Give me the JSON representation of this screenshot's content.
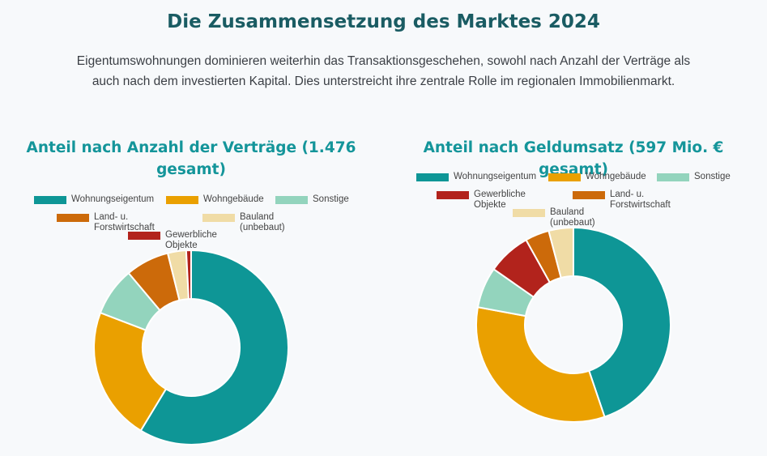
{
  "header": {
    "title": "Die Zusammensetzung des Marktes 2024",
    "intro": "Eigentumswohnungen dominieren weiterhin das Transaktionsgeschehen, sowohl nach Anzahl der Verträge als auch nach dem investierten Kapital. Dies unterstreicht ihre zentrale Rolle im regionalen Immobilienmarkt."
  },
  "colors": {
    "Wohnungseigentum": "#0e9696",
    "Wohngebäude": "#eaa000",
    "Sonstige": "#93d4bd",
    "Land- u. Forstwirtschaft": "#cc6a0a",
    "Bauland (unbebaut)": "#f0dca6",
    "Gewerbliche Objekte": "#b2231c"
  },
  "chart_data": [
    {
      "type": "pie",
      "variant": "doughnut",
      "title": "Anteil nach Anzahl der Verträge (1.476 gesamt)",
      "legend_position": "top",
      "legend": [
        {
          "label": "Wohnungseigentum",
          "color": "#0e9696"
        },
        {
          "label": "Wohngebäude",
          "color": "#eaa000"
        },
        {
          "label": "Sonstige",
          "color": "#93d4bd"
        },
        {
          "label": "Land- u. Forstwirtschaft",
          "color": "#cc6a0a"
        },
        {
          "label": "Bauland (unbebaut)",
          "color": "#f0dca6"
        },
        {
          "label": "Gewerbliche Objekte",
          "color": "#b2231c"
        }
      ],
      "slices": [
        {
          "label": "Wohnungseigentum",
          "value": 57.5,
          "color": "#0e9696"
        },
        {
          "label": "Wohngebäude",
          "value": 21.7,
          "color": "#eaa000"
        },
        {
          "label": "Sonstige",
          "value": 7.9,
          "color": "#93d4bd"
        },
        {
          "label": "Land- u. Forstwirtschaft",
          "value": 7.1,
          "color": "#cc6a0a"
        },
        {
          "label": "Bauland (unbebaut)",
          "value": 3.0,
          "color": "#f0dca6"
        },
        {
          "label": "Gewerbliche Objekte",
          "value": 0.8,
          "color": "#b2231c"
        }
      ]
    },
    {
      "type": "pie",
      "variant": "doughnut",
      "title": "Anteil nach Geldumsatz (597 Mio. € gesamt)",
      "legend_position": "top",
      "legend": [
        {
          "label": "Wohnungseigentum",
          "color": "#0e9696"
        },
        {
          "label": "Wohngebäude",
          "color": "#eaa000"
        },
        {
          "label": "Sonstige",
          "color": "#93d4bd"
        },
        {
          "label": "Gewerbliche Objekte",
          "color": "#b2231c"
        },
        {
          "label": "Land- u. Forstwirtschaft",
          "color": "#cc6a0a"
        },
        {
          "label": "Bauland (unbebaut)",
          "color": "#f0dca6"
        }
      ],
      "slices": [
        {
          "label": "Wohnungseigentum",
          "value": 44.8,
          "color": "#0e9696"
        },
        {
          "label": "Wohngebäude",
          "value": 33.1,
          "color": "#eaa000"
        },
        {
          "label": "Sonstige",
          "value": 6.8,
          "color": "#93d4bd"
        },
        {
          "label": "Gewerbliche Objekte",
          "value": 7.2,
          "color": "#b2231c"
        },
        {
          "label": "Land- u. Forstwirtschaft",
          "value": 4.0,
          "color": "#cc6a0a"
        },
        {
          "label": "Bauland (unbebaut)",
          "value": 4.1,
          "color": "#f0dca6"
        }
      ]
    }
  ]
}
